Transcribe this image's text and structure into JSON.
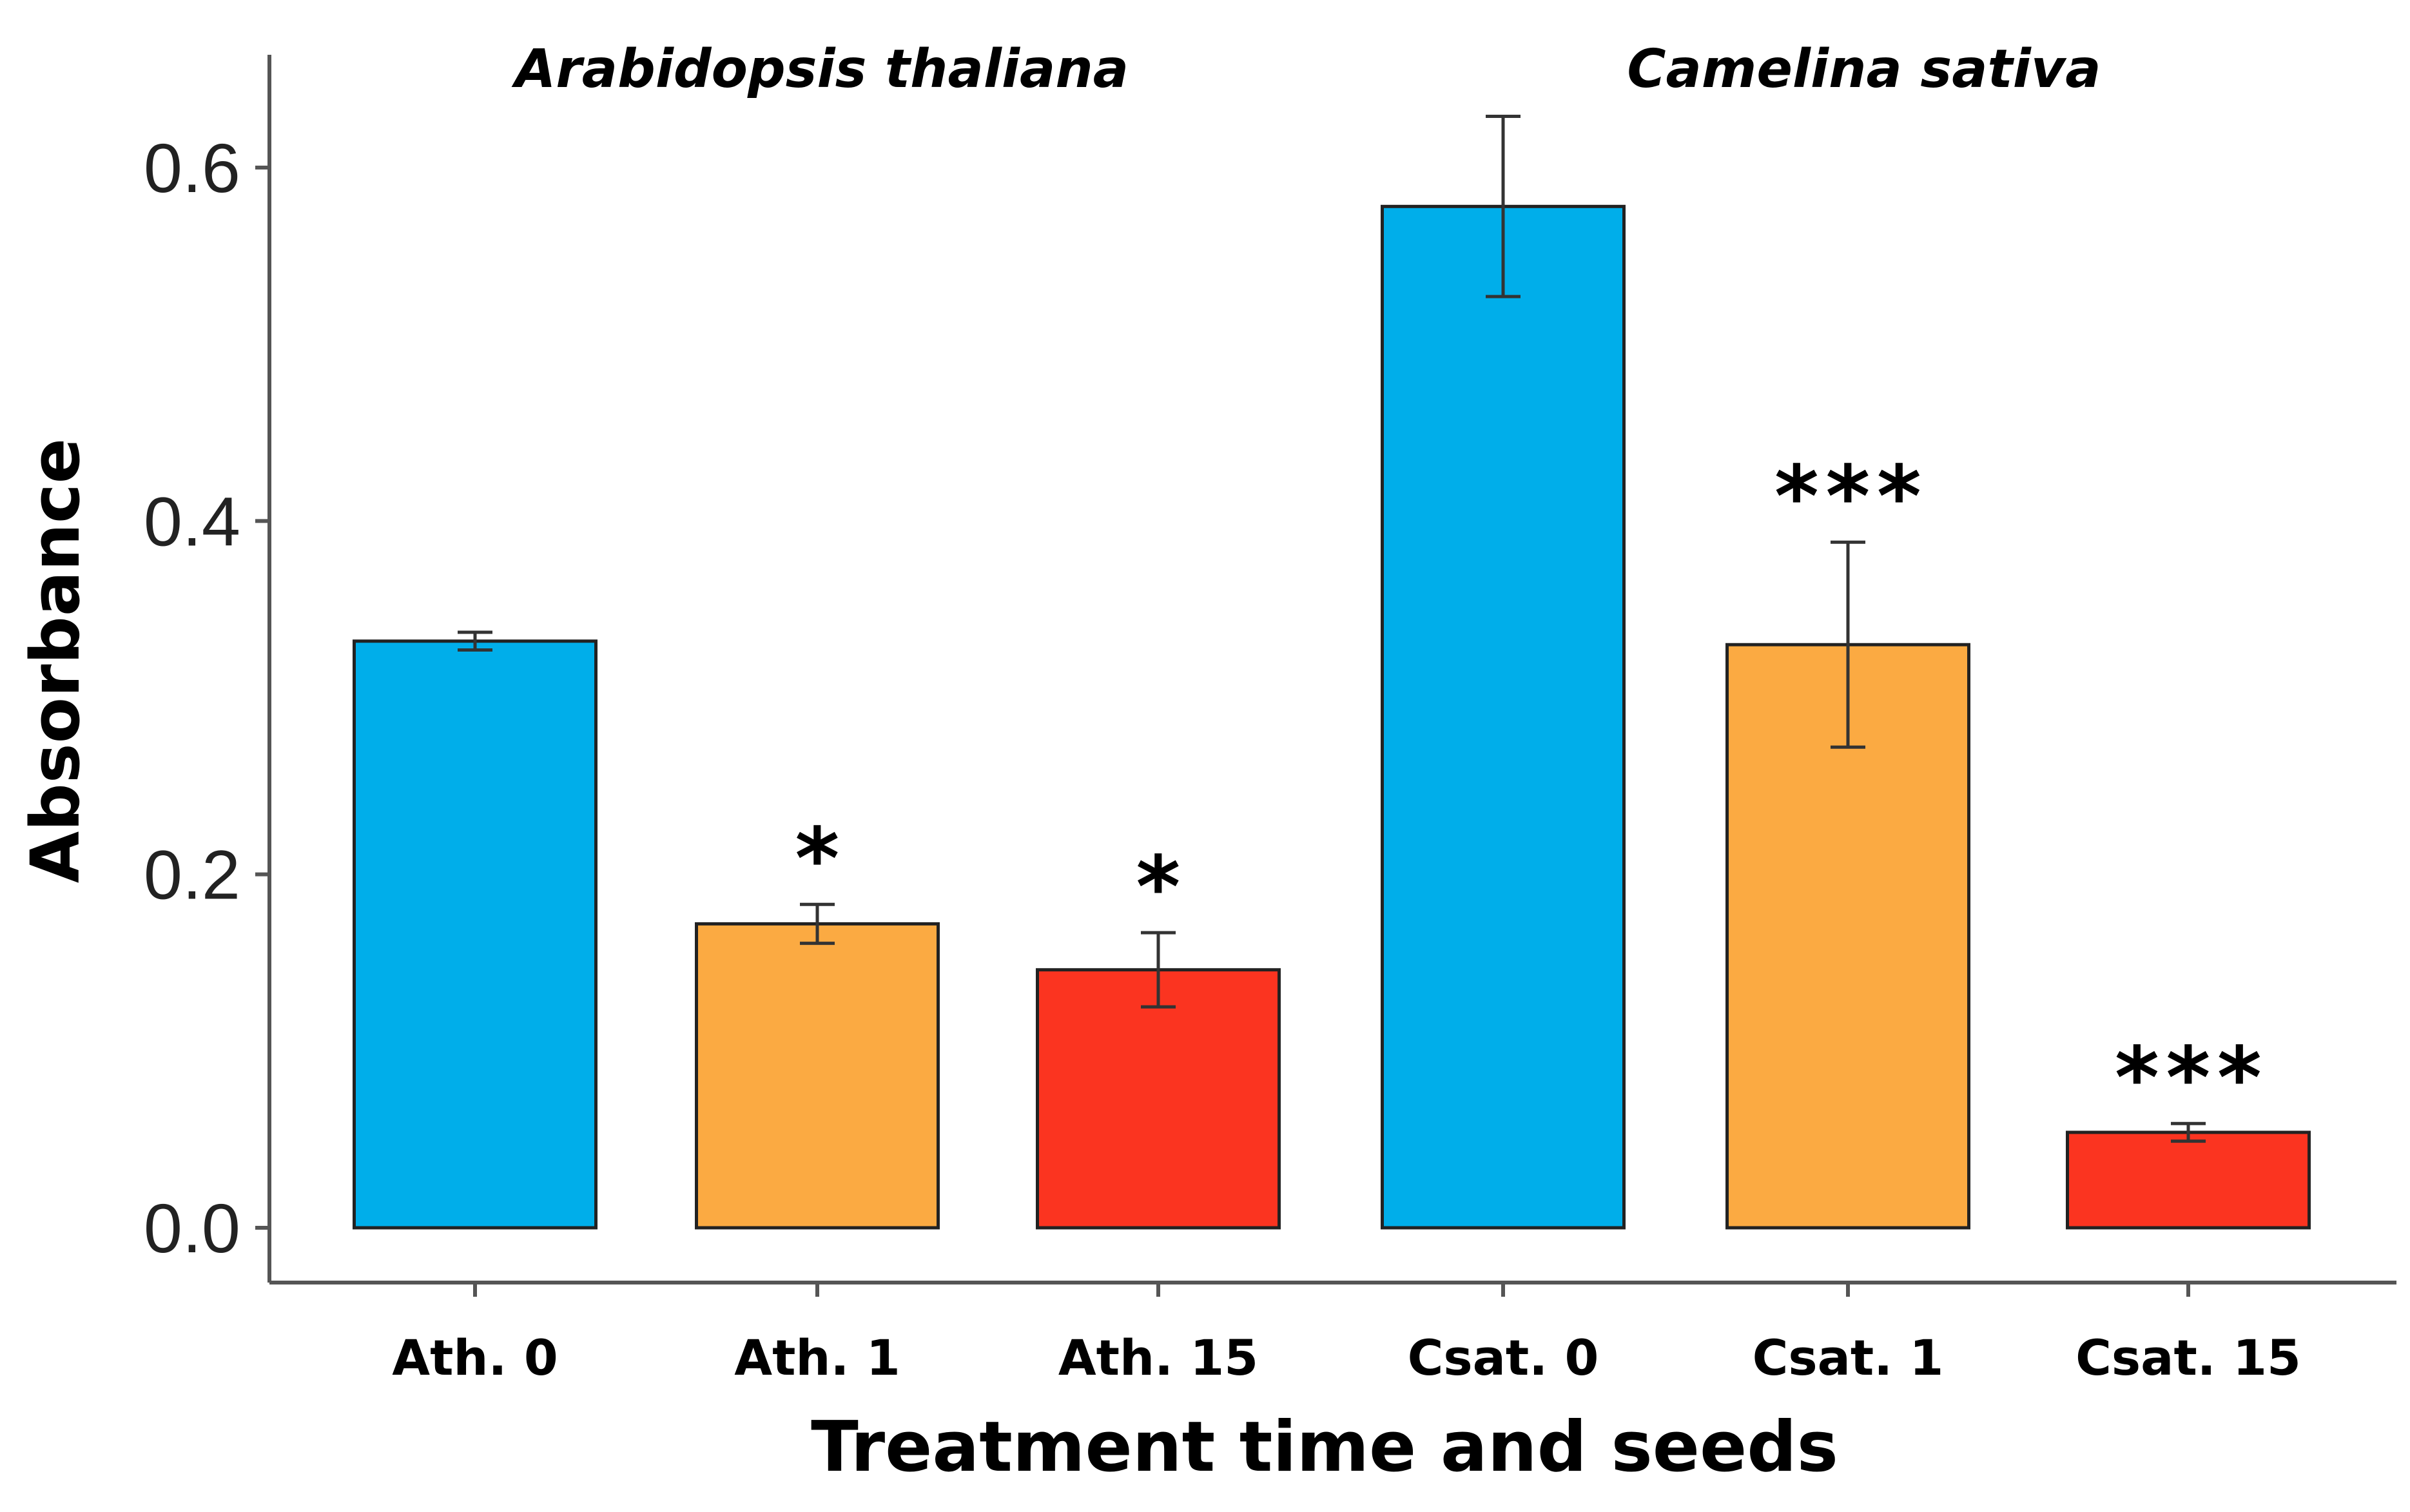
{
  "chart_data": {
    "type": "bar",
    "title": "",
    "xlabel": "Treatment time and seeds",
    "ylabel": "Absorbance",
    "ylim": [
      0,
      0.66
    ],
    "yticks": [
      {
        "value": 0.0,
        "label": "0.0"
      },
      {
        "value": 0.2,
        "label": "0.2"
      },
      {
        "value": 0.4,
        "label": "0.4"
      },
      {
        "value": 0.6,
        "label": "0.6"
      }
    ],
    "grid": false,
    "groups": [
      {
        "label": "Arabidopsis thaliana",
        "categories": [
          "Ath. 0",
          "Ath. 1",
          "Ath. 15"
        ]
      },
      {
        "label": "Camelina sativa",
        "categories": [
          "Csat. 0",
          "Csat. 1",
          "Csat. 15"
        ]
      }
    ],
    "categories": [
      "Ath. 0",
      "Ath. 1",
      "Ath. 15",
      "Csat. 0",
      "Csat. 1",
      "Csat. 15"
    ],
    "values": [
      0.332,
      0.172,
      0.146,
      0.578,
      0.33,
      0.054
    ],
    "errors": [
      0.005,
      0.011,
      0.021,
      0.051,
      0.058,
      0.005
    ],
    "significance": [
      "",
      "*",
      "*",
      "",
      "***",
      "***"
    ],
    "colors": [
      "#00aeea",
      "#fbaa42",
      "#fb3420",
      "#00aeea",
      "#fbaa42",
      "#fb3420"
    ]
  }
}
